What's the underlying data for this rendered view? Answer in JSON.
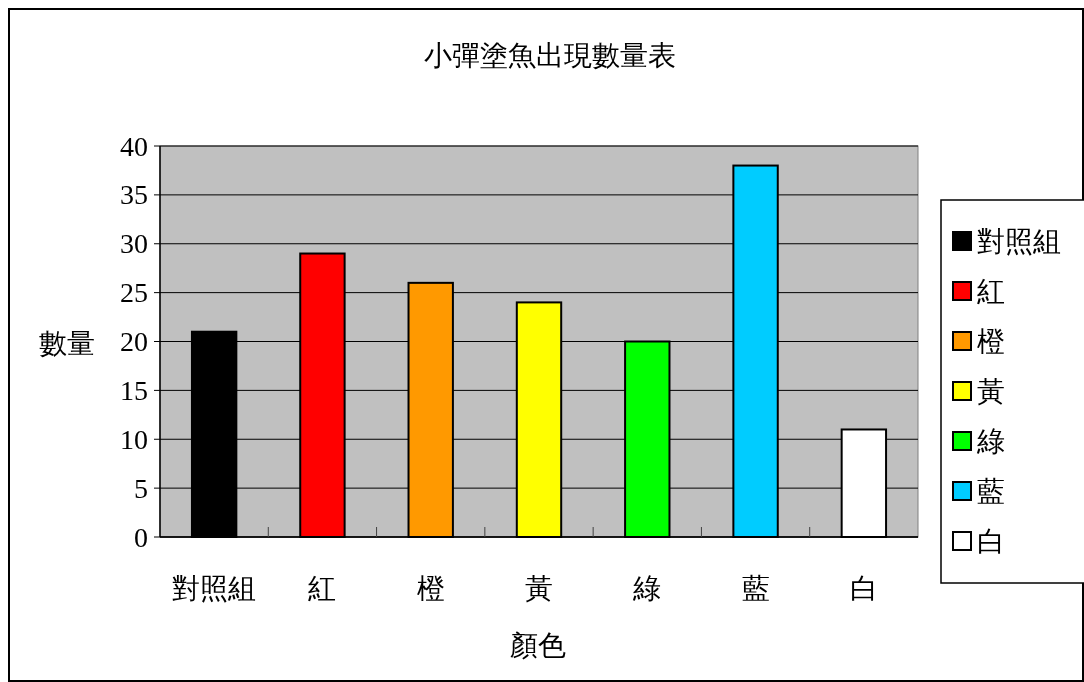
{
  "chart_data": {
    "type": "bar",
    "title": "小彈塗魚出現數量表",
    "xlabel": "顏色",
    "ylabel": "數量",
    "categories": [
      "對照組",
      "紅",
      "橙",
      "黃",
      "綠",
      "藍",
      "白"
    ],
    "series": [
      {
        "name": "對照組",
        "color": "#000000",
        "values": [
          21,
          null,
          null,
          null,
          null,
          null,
          null
        ]
      },
      {
        "name": "紅",
        "color": "#ff0000",
        "values": [
          null,
          29,
          null,
          null,
          null,
          null,
          null
        ]
      },
      {
        "name": "橙",
        "color": "#ff9900",
        "values": [
          null,
          null,
          26,
          null,
          null,
          null,
          null
        ]
      },
      {
        "name": "黃",
        "color": "#ffff00",
        "values": [
          null,
          null,
          null,
          24,
          null,
          null,
          null
        ]
      },
      {
        "name": "綠",
        "color": "#00ff00",
        "values": [
          null,
          null,
          null,
          null,
          20,
          null,
          null
        ]
      },
      {
        "name": "藍",
        "color": "#00ccff",
        "values": [
          null,
          null,
          null,
          null,
          null,
          38,
          null
        ]
      },
      {
        "name": "白",
        "color": "#ffffff",
        "values": [
          null,
          null,
          null,
          null,
          null,
          null,
          11
        ]
      }
    ],
    "ylim": [
      0,
      40
    ],
    "yticks": [
      0,
      5,
      10,
      15,
      20,
      25,
      30,
      35,
      40
    ],
    "grid": "y",
    "legend": "right"
  }
}
